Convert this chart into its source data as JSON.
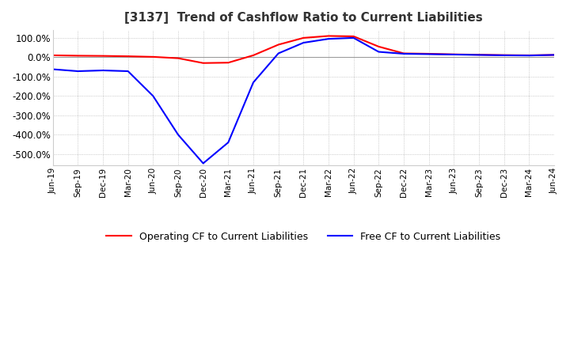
{
  "title": "[3137]  Trend of Cashflow Ratio to Current Liabilities",
  "title_fontsize": 11,
  "background_color": "#ffffff",
  "plot_bg_color": "#ffffff",
  "grid_color": "#aaaaaa",
  "line_operating_color": "#ff0000",
  "line_free_color": "#0000ff",
  "legend_operating": "Operating CF to Current Liabilities",
  "legend_free": "Free CF to Current Liabilities",
  "ylim": [
    -560,
    140
  ],
  "yticks": [
    100,
    0,
    -100,
    -200,
    -300,
    -400,
    -500
  ],
  "x_labels": [
    "Jun-19",
    "Sep-19",
    "Dec-19",
    "Mar-20",
    "Jun-20",
    "Sep-20",
    "Dec-20",
    "Mar-21",
    "Jun-21",
    "Sep-21",
    "Dec-21",
    "Mar-22",
    "Jun-22",
    "Sep-22",
    "Dec-22",
    "Mar-23",
    "Jun-23",
    "Sep-23",
    "Dec-23",
    "Mar-24",
    "Jun-24"
  ],
  "operating_cf": [
    10,
    8,
    7,
    5,
    2,
    -5,
    -30,
    -28,
    10,
    65,
    100,
    110,
    108,
    55,
    20,
    18,
    15,
    13,
    11,
    10,
    12
  ],
  "free_cf": [
    -62,
    -72,
    -68,
    -72,
    -200,
    -400,
    -548,
    -440,
    -130,
    20,
    75,
    95,
    100,
    28,
    18,
    16,
    14,
    12,
    10,
    9,
    12
  ]
}
